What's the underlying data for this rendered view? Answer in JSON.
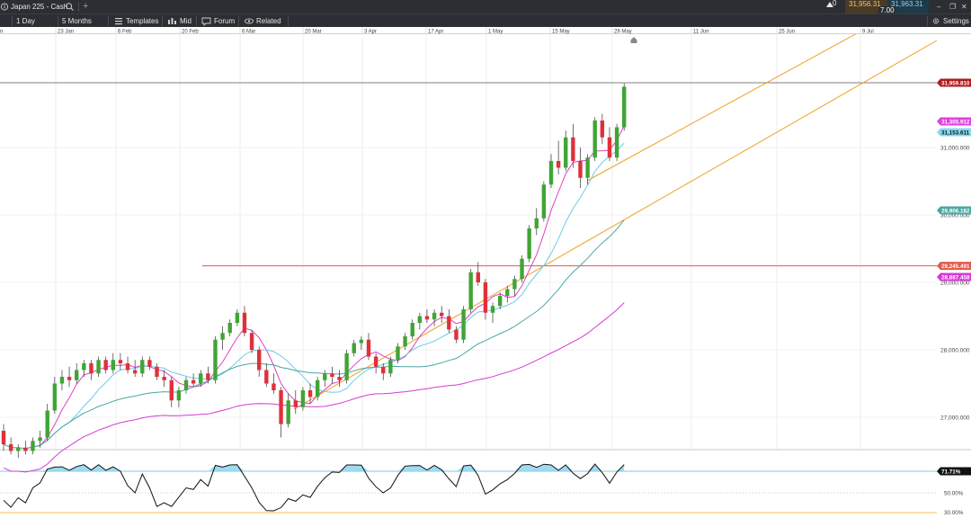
{
  "window": {
    "instrument": "Japan 225 - Cash",
    "add_tab": "+",
    "bid": "31,956.31",
    "ask": "31,963.31",
    "change": "0",
    "spread": "7.00",
    "controls": {
      "minimize": "–",
      "restore": "❐",
      "close": "✕"
    }
  },
  "toolbar": {
    "interval": "1 Day",
    "range": "5 Months",
    "templates": "Templates",
    "mid": "Mid",
    "forum": "Forum",
    "related": "Related",
    "settings": "Settings"
  },
  "dates": [
    "n",
    "23 Jan",
    "6 Feb",
    "20 Feb",
    "6 Mar",
    "20 Mar",
    "3 Apr",
    "17 Apr",
    "1 May",
    "15 May",
    "29 May",
    "11 Jun",
    "25 Jun",
    "9 Jul"
  ],
  "price_axis": {
    "ticks": [
      "31,000.000",
      "30,000.000",
      "29,000.000",
      "28,000.000",
      "27,000.000"
    ],
    "current": "31,959.810",
    "ma_short": "31,305.912",
    "ma_mid": "31,153.611",
    "ma_long": "29,906.182",
    "resistance": "29,245.491",
    "ma_xlong": "28,887.458"
  },
  "indicator_axis": {
    "current": "71.71%",
    "ticks": [
      "50.00%",
      "30.00%"
    ]
  },
  "colors": {
    "bull": "#3fa535",
    "bear": "#e0303a",
    "ma_short": "#e040c0",
    "ma_mid": "#6ccbe6",
    "ma_long": "#4aa7a0",
    "ma_xlong": "#d63ad6",
    "trend": "#f0a020",
    "resistance": "#e05a4a"
  },
  "chart_data": {
    "type": "candlestick",
    "unit": "points",
    "y_range": [
      26500,
      32300
    ],
    "resistance_level": 29245,
    "current_price": 31959.81,
    "ohlc": [
      [
        26800,
        26900,
        26500,
        26600
      ],
      [
        26600,
        26700,
        26450,
        26500
      ],
      [
        26500,
        26600,
        26400,
        26550
      ],
      [
        26550,
        26650,
        26450,
        26500
      ],
      [
        26500,
        26700,
        26450,
        26650
      ],
      [
        26650,
        26800,
        26550,
        26700
      ],
      [
        26700,
        27200,
        26650,
        27100
      ],
      [
        27100,
        27600,
        27050,
        27500
      ],
      [
        27500,
        27700,
        27400,
        27600
      ],
      [
        27600,
        27750,
        27450,
        27550
      ],
      [
        27550,
        27800,
        27500,
        27700
      ],
      [
        27700,
        27850,
        27600,
        27800
      ],
      [
        27800,
        27850,
        27550,
        27650
      ],
      [
        27650,
        27900,
        27600,
        27850
      ],
      [
        27850,
        27900,
        27650,
        27700
      ],
      [
        27700,
        27950,
        27650,
        27850
      ],
      [
        27850,
        27950,
        27700,
        27800
      ],
      [
        27800,
        27900,
        27650,
        27700
      ],
      [
        27700,
        27850,
        27600,
        27650
      ],
      [
        27650,
        27900,
        27600,
        27850
      ],
      [
        27850,
        27900,
        27700,
        27750
      ],
      [
        27750,
        27800,
        27550,
        27600
      ],
      [
        27600,
        27700,
        27450,
        27550
      ],
      [
        27550,
        27600,
        27150,
        27250
      ],
      [
        27250,
        27450,
        27150,
        27400
      ],
      [
        27400,
        27600,
        27350,
        27550
      ],
      [
        27550,
        27650,
        27450,
        27500
      ],
      [
        27500,
        27700,
        27450,
        27650
      ],
      [
        27650,
        27750,
        27500,
        27550
      ],
      [
        27550,
        28200,
        27500,
        28150
      ],
      [
        28150,
        28350,
        28000,
        28250
      ],
      [
        28250,
        28450,
        28200,
        28400
      ],
      [
        28400,
        28600,
        28350,
        28550
      ],
      [
        28550,
        28650,
        28200,
        28250
      ],
      [
        28250,
        28300,
        27950,
        28000
      ],
      [
        28000,
        28050,
        27600,
        27700
      ],
      [
        27700,
        27800,
        27450,
        27500
      ],
      [
        27500,
        27650,
        27350,
        27400
      ],
      [
        27400,
        27450,
        26700,
        26900
      ],
      [
        26900,
        27350,
        26850,
        27250
      ],
      [
        27250,
        27400,
        27050,
        27150
      ],
      [
        27150,
        27450,
        27100,
        27400
      ],
      [
        27400,
        27500,
        27200,
        27300
      ],
      [
        27300,
        27600,
        27250,
        27550
      ],
      [
        27550,
        27700,
        27450,
        27650
      ],
      [
        27650,
        27750,
        27500,
        27600
      ],
      [
        27600,
        27700,
        27450,
        27550
      ],
      [
        27550,
        28000,
        27500,
        27950
      ],
      [
        27950,
        28150,
        27900,
        28100
      ],
      [
        28100,
        28200,
        28000,
        28150
      ],
      [
        28150,
        28250,
        27850,
        27900
      ],
      [
        27900,
        27950,
        27650,
        27750
      ],
      [
        27750,
        27800,
        27550,
        27650
      ],
      [
        27650,
        27900,
        27600,
        27850
      ],
      [
        27850,
        28100,
        27800,
        28050
      ],
      [
        28050,
        28250,
        28000,
        28200
      ],
      [
        28200,
        28450,
        28150,
        28400
      ],
      [
        28400,
        28550,
        28300,
        28500
      ],
      [
        28500,
        28600,
        28400,
        28450
      ],
      [
        28450,
        28600,
        28350,
        28550
      ],
      [
        28550,
        28650,
        28400,
        28500
      ],
      [
        28500,
        28600,
        28250,
        28300
      ],
      [
        28300,
        28350,
        28100,
        28150
      ],
      [
        28150,
        28650,
        28100,
        28600
      ],
      [
        28600,
        29200,
        28550,
        29150
      ],
      [
        29150,
        29300,
        28950,
        29000
      ],
      [
        29000,
        29050,
        28450,
        28550
      ],
      [
        28550,
        28700,
        28400,
        28650
      ],
      [
        28650,
        28850,
        28600,
        28800
      ],
      [
        28800,
        28950,
        28700,
        28900
      ],
      [
        28900,
        29100,
        28800,
        29050
      ],
      [
        29050,
        29400,
        29000,
        29350
      ],
      [
        29350,
        29850,
        29300,
        29800
      ],
      [
        29800,
        30100,
        29700,
        29950
      ],
      [
        29950,
        30500,
        29900,
        30450
      ],
      [
        30450,
        30900,
        30400,
        30800
      ],
      [
        30800,
        31100,
        30600,
        30700
      ],
      [
        30700,
        31250,
        30650,
        31150
      ],
      [
        31150,
        31350,
        30700,
        30800
      ],
      [
        30800,
        31000,
        30400,
        30550
      ],
      [
        30550,
        30900,
        30450,
        30850
      ],
      [
        30850,
        31450,
        30800,
        31400
      ],
      [
        31400,
        31500,
        31050,
        31150
      ],
      [
        31150,
        31300,
        30800,
        30850
      ],
      [
        30850,
        31350,
        30800,
        31300
      ],
      [
        31300,
        31950,
        31250,
        31900
      ]
    ]
  }
}
